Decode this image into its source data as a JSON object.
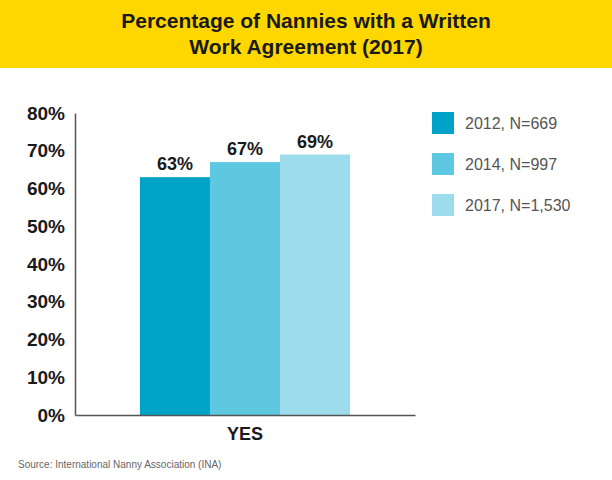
{
  "chart_data": {
    "type": "bar",
    "title": "Percentage of Nannies with a Written Work Agreement (2017)",
    "categories": [
      "YES"
    ],
    "series": [
      {
        "name": "2012, N=669",
        "color": "#00a3c8",
        "values": [
          63
        ],
        "value_labels": [
          "63%"
        ]
      },
      {
        "name": "2014, N=997",
        "color": "#5fc8e1",
        "values": [
          67
        ],
        "value_labels": [
          "67%"
        ]
      },
      {
        "name": "2017, N=1,530",
        "color": "#9cdcec",
        "values": [
          69
        ],
        "value_labels": [
          "69%"
        ]
      }
    ],
    "ylim": [
      0,
      80
    ],
    "yticks": [
      {
        "value": 0,
        "label": "0%"
      },
      {
        "value": 10,
        "label": "10%"
      },
      {
        "value": 20,
        "label": "20%"
      },
      {
        "value": 30,
        "label": "30%"
      },
      {
        "value": 40,
        "label": "40%"
      },
      {
        "value": 50,
        "label": "50%"
      },
      {
        "value": 60,
        "label": "60%"
      },
      {
        "value": 70,
        "label": "70%"
      },
      {
        "value": 80,
        "label": "80%"
      }
    ],
    "grid": false,
    "legend": "right",
    "data_labels": true,
    "annotations": [
      "Source: International Nanny Association (INA)"
    ]
  }
}
